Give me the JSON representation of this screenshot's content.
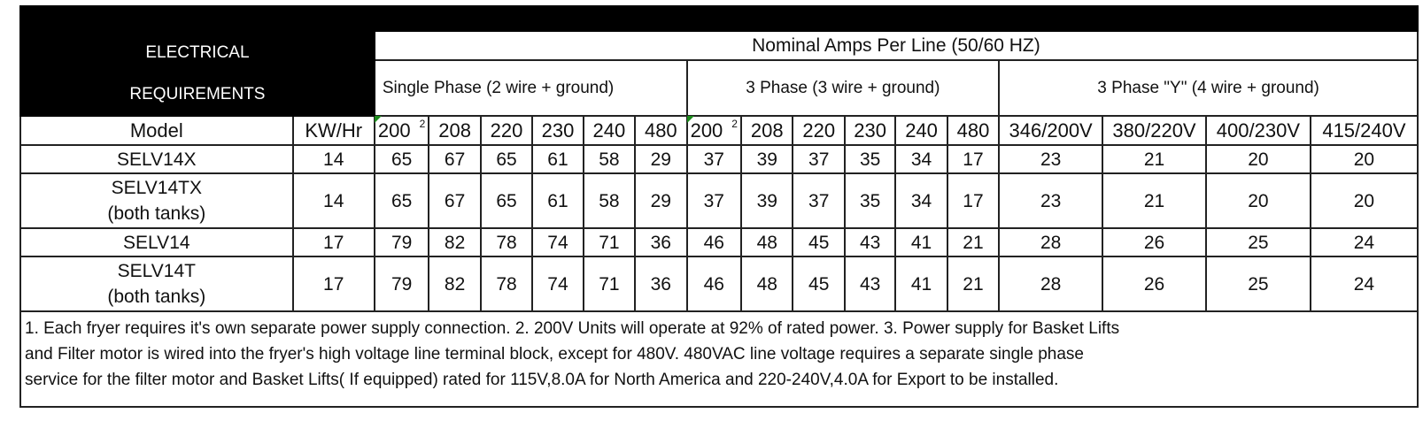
{
  "header": {
    "electrical_line1": "ELECTRICAL",
    "electrical_line2": "REQUIREMENTS",
    "nominal_amps": "Nominal Amps Per Line (50/60 HZ)",
    "single_phase": "Single Phase (2 wire + ground)",
    "three_phase": "3 Phase (3 wire + ground)",
    "three_phase_y": "3 Phase \"Y\" (4 wire + ground)"
  },
  "columns": {
    "model": "Model",
    "kwhr": "KW/Hr",
    "sp": [
      "200",
      "208",
      "220",
      "230",
      "240",
      "480"
    ],
    "sp_sup": "2",
    "tp": [
      "200",
      "208",
      "220",
      "230",
      "240",
      "480"
    ],
    "tp_sup": "2",
    "y": [
      "346/200V",
      "380/220V",
      "400/230V",
      "415/240V"
    ]
  },
  "rows": [
    {
      "model": [
        "SELV14X"
      ],
      "kw": "14",
      "sp": [
        "65",
        "67",
        "65",
        "61",
        "58",
        "29"
      ],
      "tp": [
        "37",
        "39",
        "37",
        "35",
        "34",
        "17"
      ],
      "y": [
        "23",
        "21",
        "20",
        "20"
      ]
    },
    {
      "model": [
        "SELV14TX",
        "(both tanks)"
      ],
      "kw": "14",
      "sp": [
        "65",
        "67",
        "65",
        "61",
        "58",
        "29"
      ],
      "tp": [
        "37",
        "39",
        "37",
        "35",
        "34",
        "17"
      ],
      "y": [
        "23",
        "21",
        "20",
        "20"
      ]
    },
    {
      "model": [
        "SELV14"
      ],
      "kw": "17",
      "sp": [
        "79",
        "82",
        "78",
        "74",
        "71",
        "36"
      ],
      "tp": [
        "46",
        "48",
        "45",
        "43",
        "41",
        "21"
      ],
      "y": [
        "28",
        "26",
        "25",
        "24"
      ]
    },
    {
      "model": [
        "SELV14T",
        "(both tanks)"
      ],
      "kw": "17",
      "sp": [
        "79",
        "82",
        "78",
        "74",
        "71",
        "36"
      ],
      "tp": [
        "46",
        "48",
        "45",
        "43",
        "41",
        "21"
      ],
      "y": [
        "28",
        "26",
        "25",
        "24"
      ]
    }
  ],
  "notes": [
    "1. Each fryer requires it's own separate power supply connection. 2. 200V Units will operate at 92% of rated power. 3. Power supply for Basket Lifts",
    "and Filter motor is wired into the fryer's high voltage line terminal block, except for 480V. 480VAC line voltage requires a separate single phase",
    "service for the filter motor and Basket Lifts( If equipped) rated for 115V,8.0A for North America and 220-240V,4.0A for Export to be installed."
  ]
}
